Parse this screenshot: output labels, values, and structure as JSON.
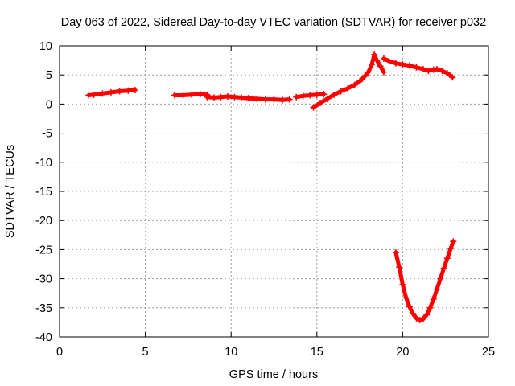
{
  "chart_data": {
    "type": "scatter",
    "title": "Day 063 of 2022, Sidereal Day-to-day VTEC variation (SDTVAR) for receiver p032",
    "xlabel": "GPS time / hours",
    "ylabel": "SDTVAR / TECUs",
    "xlim": [
      0,
      25
    ],
    "ylim": [
      -40,
      10
    ],
    "xticks": [
      0,
      5,
      10,
      15,
      20,
      25
    ],
    "yticks": [
      10,
      5,
      0,
      -5,
      -10,
      -15,
      -20,
      -25,
      -30,
      -35,
      -40
    ],
    "xtick_labels": [
      "0",
      "5",
      "10",
      "15",
      "20",
      "25"
    ],
    "ytick_labels": [
      "10",
      "5",
      "0",
      "-5",
      "-10",
      "-15",
      "-20",
      "-25",
      "-30",
      "-35",
      "-40"
    ],
    "grid": true,
    "marker": "plus",
    "series": [
      {
        "name": "SDTVAR",
        "color": "#ff0000",
        "segments": [
          [
            [
              1.7,
              1.5
            ],
            [
              2.0,
              1.6
            ],
            [
              2.5,
              1.8
            ],
            [
              3.0,
              2.0
            ],
            [
              3.5,
              2.2
            ],
            [
              4.0,
              2.3
            ],
            [
              4.4,
              2.4
            ]
          ],
          [
            [
              6.7,
              1.5
            ],
            [
              7.2,
              1.5
            ],
            [
              7.7,
              1.6
            ],
            [
              8.2,
              1.7
            ],
            [
              8.6,
              1.6
            ]
          ],
          [
            [
              8.6,
              1.2
            ],
            [
              9.0,
              1.1
            ],
            [
              9.4,
              1.2
            ],
            [
              9.8,
              1.3
            ],
            [
              10.2,
              1.2
            ],
            [
              10.6,
              1.1
            ],
            [
              11.0,
              1.0
            ],
            [
              11.5,
              0.9
            ],
            [
              12.0,
              0.8
            ],
            [
              12.5,
              0.8
            ],
            [
              13.0,
              0.7
            ],
            [
              13.4,
              0.8
            ]
          ],
          [
            [
              13.8,
              1.2
            ],
            [
              14.2,
              1.4
            ],
            [
              14.6,
              1.5
            ],
            [
              15.0,
              1.6
            ],
            [
              15.4,
              1.7
            ]
          ],
          [
            [
              14.8,
              -0.6
            ],
            [
              15.2,
              0.2
            ],
            [
              15.6,
              0.9
            ],
            [
              16.0,
              1.6
            ],
            [
              16.4,
              2.2
            ],
            [
              16.8,
              2.7
            ],
            [
              17.2,
              3.3
            ],
            [
              17.5,
              3.9
            ],
            [
              17.8,
              4.8
            ],
            [
              18.0,
              5.5
            ],
            [
              18.2,
              6.8
            ],
            [
              18.35,
              8.5
            ],
            [
              18.5,
              7.5
            ],
            [
              18.7,
              6.5
            ],
            [
              18.9,
              5.5
            ]
          ],
          [
            [
              18.9,
              7.8
            ],
            [
              19.2,
              7.4
            ],
            [
              19.6,
              7.0
            ],
            [
              20.0,
              6.8
            ],
            [
              20.4,
              6.6
            ],
            [
              20.8,
              6.3
            ],
            [
              21.2,
              6.0
            ],
            [
              21.5,
              5.7
            ],
            [
              21.8,
              5.9
            ],
            [
              22.0,
              6.0
            ],
            [
              22.3,
              5.7
            ],
            [
              22.6,
              5.3
            ],
            [
              22.9,
              4.6
            ]
          ],
          [
            [
              19.6,
              -25.5
            ],
            [
              19.8,
              -28.0
            ],
            [
              20.0,
              -31.0
            ],
            [
              20.2,
              -33.3
            ],
            [
              20.4,
              -34.8
            ],
            [
              20.6,
              -36.0
            ],
            [
              20.8,
              -36.8
            ],
            [
              21.0,
              -37.1
            ],
            [
              21.2,
              -36.9
            ],
            [
              21.4,
              -36.2
            ],
            [
              21.6,
              -35.0
            ],
            [
              21.8,
              -33.5
            ],
            [
              22.0,
              -31.8
            ],
            [
              22.2,
              -30.0
            ],
            [
              22.4,
              -28.2
            ],
            [
              22.6,
              -26.5
            ],
            [
              22.8,
              -24.8
            ],
            [
              22.95,
              -23.6
            ]
          ]
        ]
      }
    ]
  }
}
